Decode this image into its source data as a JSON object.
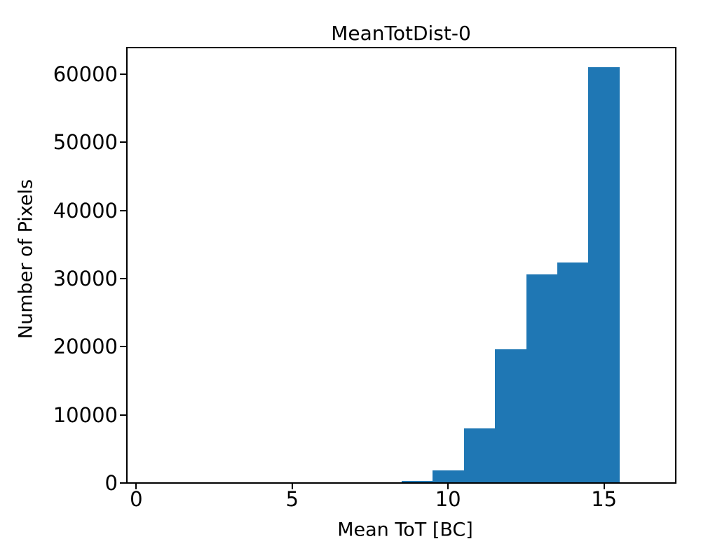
{
  "chart_data": {
    "type": "bar",
    "subtype": "histogram",
    "title": "MeanTotDist-0",
    "xlabel": "Mean ToT [BC]",
    "ylabel": "Number of Pixels",
    "bar_color": "#1f77b4",
    "axes_color": "#000000",
    "background_color": "#ffffff",
    "grid": false,
    "legend": false,
    "bin_edges": [
      0.5,
      1.5,
      2.5,
      3.5,
      4.5,
      5.5,
      6.5,
      7.5,
      8.5,
      9.5,
      10.5,
      11.5,
      12.5,
      13.5,
      14.5,
      15.5,
      16.5
    ],
    "counts": [
      0,
      0,
      0,
      0,
      0,
      0,
      0,
      0,
      300,
      1900,
      8000,
      19600,
      30600,
      32400,
      61000,
      0
    ],
    "xlim": [
      -0.3,
      17.3
    ],
    "ylim": [
      0,
      63900
    ],
    "x_ticks": [
      0,
      5,
      10,
      15
    ],
    "x_tick_labels": [
      "0",
      "5",
      "10",
      "15"
    ],
    "y_ticks": [
      0,
      10000,
      20000,
      30000,
      40000,
      50000,
      60000
    ],
    "y_tick_labels": [
      "0",
      "10000",
      "20000",
      "30000",
      "40000",
      "50000",
      "60000"
    ]
  }
}
